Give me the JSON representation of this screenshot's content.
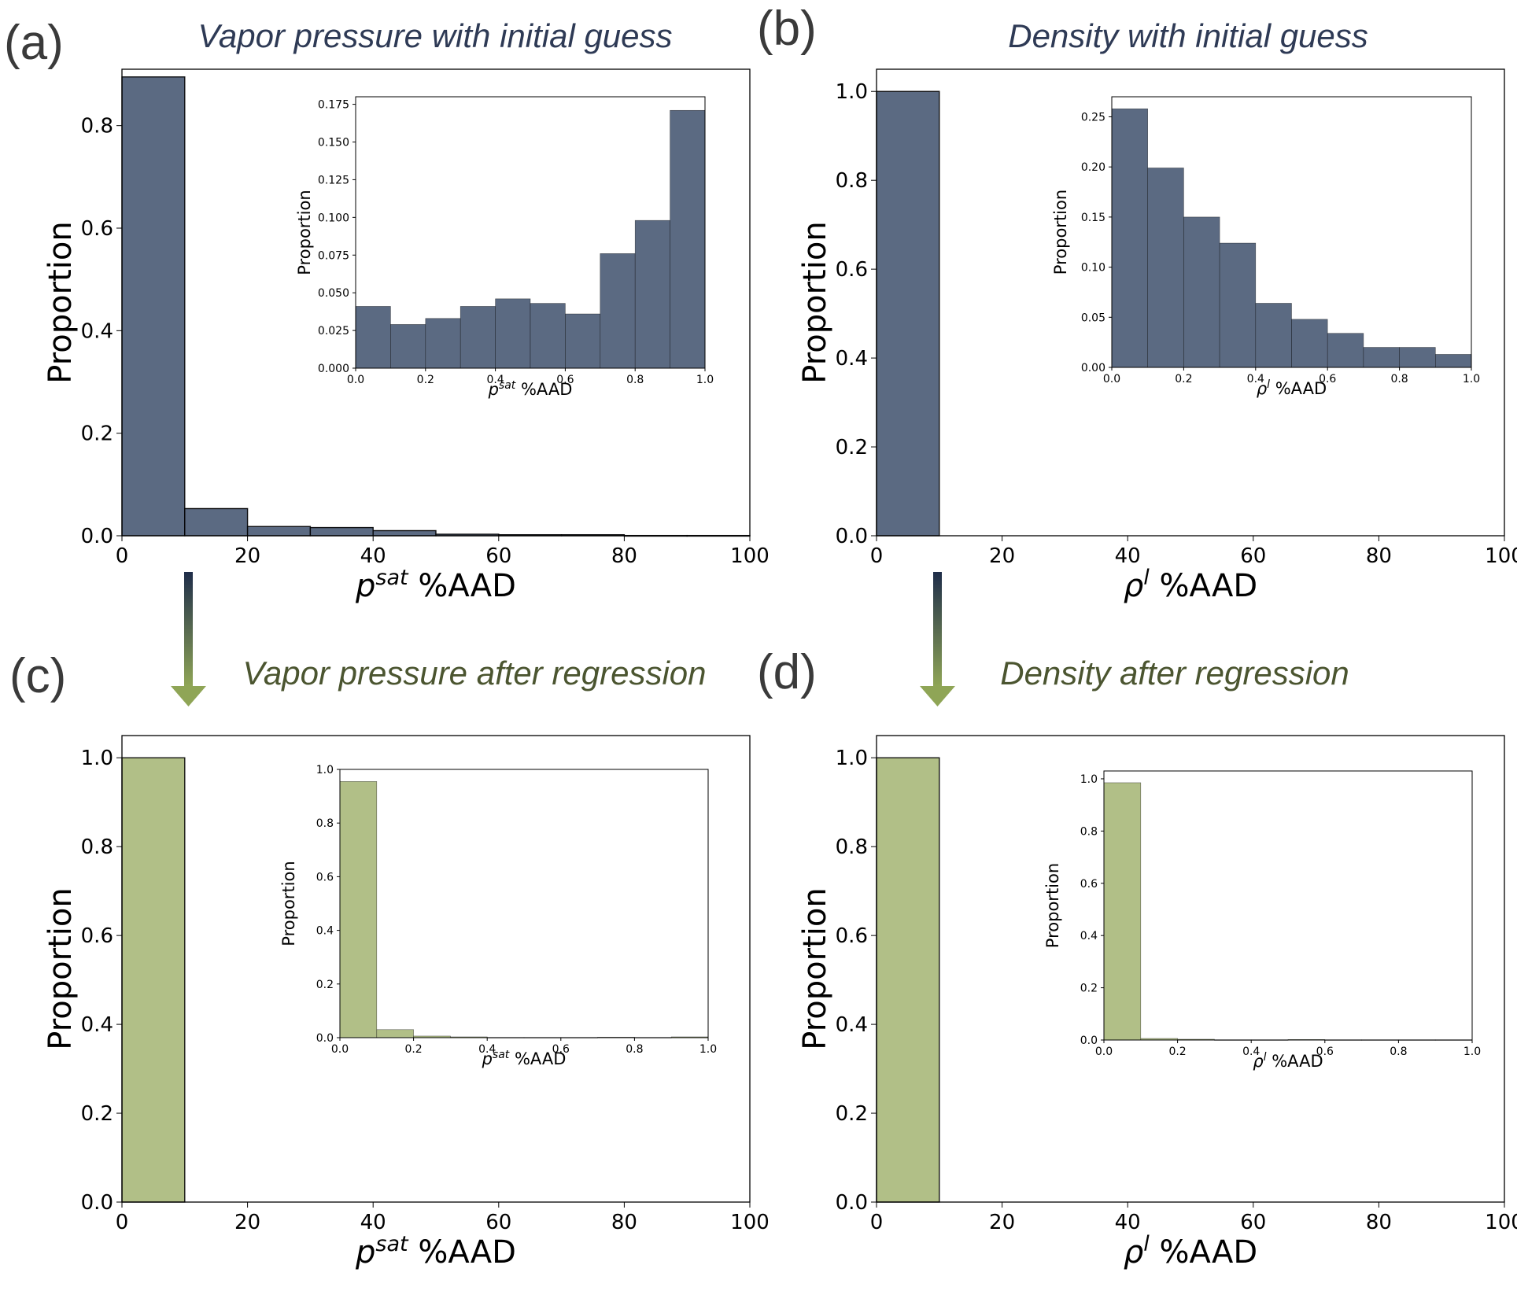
{
  "colors": {
    "initial": "#5b6a82",
    "regressed": "#b1bf87",
    "title_initial": "#2e3a55",
    "title_regressed": "#4b5530",
    "arrow_top": "#1f2d4a",
    "arrow_bottom": "#8fa556"
  },
  "chart_data": [
    {
      "id": "a",
      "type": "bar",
      "panel_label": "(a)",
      "title": "Vapor pressure with initial guess",
      "xlabel": "p^sat %AAD",
      "ylabel": "Proportion",
      "xlim": [
        0,
        100
      ],
      "ylim": [
        0,
        0.91
      ],
      "xticks": [
        "0",
        "20",
        "40",
        "60",
        "80",
        "100"
      ],
      "yticks": [
        "0.0",
        "0.2",
        "0.4",
        "0.6",
        "0.8"
      ],
      "bin_edges": [
        0,
        10,
        20,
        30,
        40,
        50,
        60,
        70,
        80,
        90,
        100
      ],
      "values": [
        0.895,
        0.053,
        0.018,
        0.016,
        0.01,
        0.003,
        0.002,
        0.002,
        0.0005,
        0.0005
      ],
      "inset": {
        "xlabel": "p^sat %AAD",
        "ylabel": "Proportion",
        "xlim": [
          0,
          1.0
        ],
        "ylim": [
          0,
          0.18
        ],
        "xticks": [
          "0.0",
          "0.2",
          "0.4",
          "0.6",
          "0.8",
          "1.0"
        ],
        "yticks": [
          "0.000",
          "0.025",
          "0.050",
          "0.075",
          "0.100",
          "0.125",
          "0.150",
          "0.175"
        ],
        "bin_edges": [
          0,
          0.1,
          0.2,
          0.3,
          0.4,
          0.5,
          0.6,
          0.7,
          0.8,
          0.9,
          1.0
        ],
        "values": [
          0.041,
          0.029,
          0.033,
          0.041,
          0.046,
          0.043,
          0.036,
          0.076,
          0.098,
          0.171
        ]
      }
    },
    {
      "id": "b",
      "type": "bar",
      "panel_label": "(b)",
      "title": "Density with initial guess",
      "xlabel": "ρ^l %AAD",
      "ylabel": "Proportion",
      "xlim": [
        0,
        100
      ],
      "ylim": [
        0,
        1.05
      ],
      "xticks": [
        "0",
        "20",
        "40",
        "60",
        "80",
        "100"
      ],
      "yticks": [
        "0.0",
        "0.2",
        "0.4",
        "0.6",
        "0.8",
        "1.0"
      ],
      "bin_edges": [
        0,
        10,
        20,
        30,
        40,
        50,
        60,
        70,
        80,
        90,
        100
      ],
      "values": [
        1.0,
        0,
        0,
        0,
        0,
        0,
        0,
        0,
        0,
        0
      ],
      "inset": {
        "xlabel": "ρ^l %AAD",
        "ylabel": "Proportion",
        "xlim": [
          0,
          1.0
        ],
        "ylim": [
          0,
          0.27
        ],
        "xticks": [
          "0.0",
          "0.2",
          "0.4",
          "0.6",
          "0.8",
          "1.0"
        ],
        "yticks": [
          "0.00",
          "0.05",
          "0.10",
          "0.15",
          "0.20",
          "0.25"
        ],
        "bin_edges": [
          0,
          0.1,
          0.2,
          0.3,
          0.4,
          0.5,
          0.6,
          0.7,
          0.8,
          0.9,
          1.0
        ],
        "values": [
          0.258,
          0.199,
          0.15,
          0.124,
          0.064,
          0.048,
          0.034,
          0.02,
          0.02,
          0.013
        ]
      }
    },
    {
      "id": "c",
      "type": "bar",
      "panel_label": "(c)",
      "title": "Vapor pressure after regression",
      "xlabel": "p^sat %AAD",
      "ylabel": "Proportion",
      "xlim": [
        0,
        100
      ],
      "ylim": [
        0,
        1.05
      ],
      "xticks": [
        "0",
        "20",
        "40",
        "60",
        "80",
        "100"
      ],
      "yticks": [
        "0.0",
        "0.2",
        "0.4",
        "0.6",
        "0.8",
        "1.0"
      ],
      "bin_edges": [
        0,
        10,
        20,
        30,
        40,
        50,
        60,
        70,
        80,
        90,
        100
      ],
      "values": [
        1.0,
        0,
        0,
        0,
        0,
        0,
        0,
        0,
        0,
        0
      ],
      "inset": {
        "xlabel": "p^sat %AAD",
        "ylabel": "Proportion",
        "xlim": [
          0,
          1.0
        ],
        "ylim": [
          0,
          1.0
        ],
        "xticks": [
          "0.0",
          "0.2",
          "0.4",
          "0.6",
          "0.8",
          "1.0"
        ],
        "yticks": [
          "0.0",
          "0.2",
          "0.4",
          "0.6",
          "0.8",
          "1.0"
        ],
        "bin_edges": [
          0,
          0.1,
          0.2,
          0.3,
          0.4,
          0.5,
          0.6,
          0.7,
          0.8,
          0.9,
          1.0
        ],
        "values": [
          0.955,
          0.03,
          0.006,
          0.003,
          0.001,
          0.001,
          0.001,
          0.002,
          0.001,
          0.003
        ]
      }
    },
    {
      "id": "d",
      "type": "bar",
      "panel_label": "(d)",
      "title": "Density after regression",
      "xlabel": "ρ^l %AAD",
      "ylabel": "Proportion",
      "xlim": [
        0,
        100
      ],
      "ylim": [
        0,
        1.05
      ],
      "xticks": [
        "0",
        "20",
        "40",
        "60",
        "80",
        "100"
      ],
      "yticks": [
        "0.0",
        "0.2",
        "0.4",
        "0.6",
        "0.8",
        "1.0"
      ],
      "bin_edges": [
        0,
        10,
        20,
        30,
        40,
        50,
        60,
        70,
        80,
        90,
        100
      ],
      "values": [
        1.0,
        0,
        0,
        0,
        0,
        0,
        0,
        0,
        0,
        0
      ],
      "inset": {
        "xlabel": "ρ^l %AAD",
        "ylabel": "Proportion",
        "xlim": [
          0,
          1.0
        ],
        "ylim": [
          0,
          1.03
        ],
        "xticks": [
          "0.0",
          "0.2",
          "0.4",
          "0.6",
          "0.8",
          "1.0"
        ],
        "yticks": [
          "0.0",
          "0.2",
          "0.4",
          "0.6",
          "0.8",
          "1.0"
        ],
        "bin_edges": [
          0,
          0.1,
          0.2,
          0.3,
          0.4,
          0.5,
          0.6,
          0.7,
          0.8,
          0.9,
          1.0
        ],
        "values": [
          0.985,
          0.006,
          0.003,
          0.001,
          0.001,
          0.002,
          0.001,
          0.001,
          0.001,
          0.001
        ]
      }
    }
  ]
}
